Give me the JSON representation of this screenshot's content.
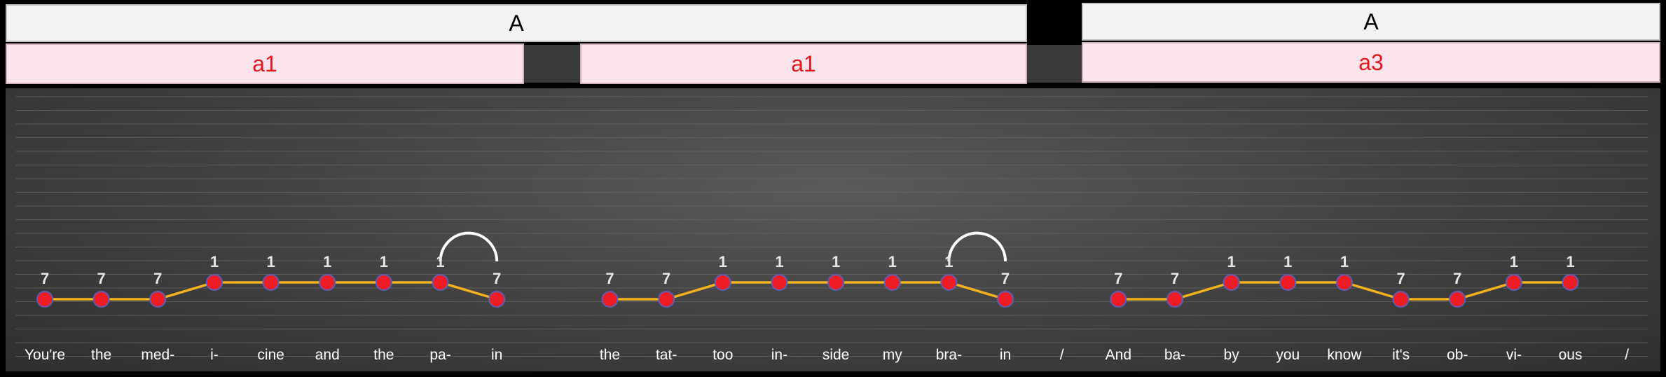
{
  "sections": [
    {
      "label": "A"
    },
    {
      "label": "A"
    }
  ],
  "phrases": [
    {
      "label": "a1"
    },
    {
      "label": "a1"
    },
    {
      "label": "a3"
    }
  ],
  "chart_data": {
    "type": "line",
    "title": "",
    "xlabel": "",
    "ylabel": "",
    "level_low": 7,
    "level_high": 1,
    "lyrics": [
      "You're",
      "the",
      "med-",
      "i-",
      "cine",
      "and",
      "the",
      "pa-",
      "in",
      "",
      "the",
      "tat-",
      "too",
      "in-",
      "side",
      "my",
      "bra-",
      "in",
      "/",
      "And",
      "ba-",
      "by",
      "you",
      "know",
      "it's",
      "ob-",
      "vi-",
      "ous",
      "/"
    ],
    "segments": [
      {
        "points": [
          {
            "x": 0,
            "label": "7"
          },
          {
            "x": 1,
            "label": "7"
          },
          {
            "x": 2,
            "label": "7"
          },
          {
            "x": 3,
            "label": "1"
          },
          {
            "x": 4,
            "label": "1"
          },
          {
            "x": 5,
            "label": "1"
          },
          {
            "x": 6,
            "label": "1"
          },
          {
            "x": 7,
            "label": "1"
          },
          {
            "x": 8,
            "label": "7"
          }
        ],
        "arc": [
          7,
          8
        ]
      },
      {
        "points": [
          {
            "x": 10,
            "label": "7"
          },
          {
            "x": 11,
            "label": "7"
          },
          {
            "x": 12,
            "label": "1"
          },
          {
            "x": 13,
            "label": "1"
          },
          {
            "x": 14,
            "label": "1"
          },
          {
            "x": 15,
            "label": "1"
          },
          {
            "x": 16,
            "label": "1"
          },
          {
            "x": 17,
            "label": "7"
          }
        ],
        "arc": [
          16,
          17
        ]
      },
      {
        "points": [
          {
            "x": 19,
            "label": "7"
          },
          {
            "x": 20,
            "label": "7"
          },
          {
            "x": 21,
            "label": "1"
          },
          {
            "x": 22,
            "label": "1"
          },
          {
            "x": 23,
            "label": "1"
          },
          {
            "x": 24,
            "label": "7"
          },
          {
            "x": 25,
            "label": "7"
          },
          {
            "x": 26,
            "label": "1"
          },
          {
            "x": 27,
            "label": "1"
          }
        ],
        "arc": null
      }
    ],
    "colors": {
      "line": "#f5b21d",
      "marker": "#ee1c25",
      "marker_edge": "#5b5fb8",
      "label": "#e6e6e6",
      "grid": "#6a6a6a"
    }
  }
}
